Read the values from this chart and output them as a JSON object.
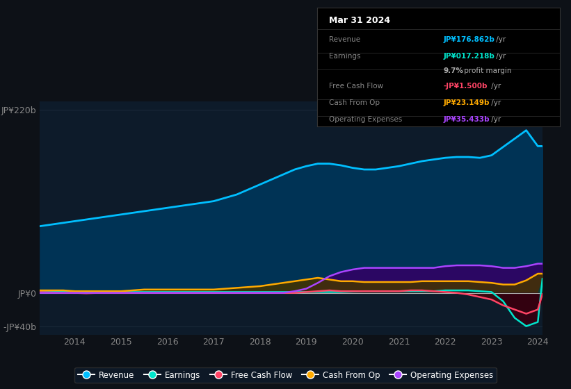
{
  "background_color": "#0d1117",
  "plot_bg_color": "#0d1b2a",
  "x_years": [
    2013.25,
    2013.5,
    2013.75,
    2014.0,
    2014.25,
    2014.5,
    2014.75,
    2015.0,
    2015.25,
    2015.5,
    2015.75,
    2016.0,
    2016.25,
    2016.5,
    2016.75,
    2017.0,
    2017.25,
    2017.5,
    2017.75,
    2018.0,
    2018.25,
    2018.5,
    2018.75,
    2019.0,
    2019.25,
    2019.5,
    2019.75,
    2020.0,
    2020.25,
    2020.5,
    2020.75,
    2021.0,
    2021.25,
    2021.5,
    2021.75,
    2022.0,
    2022.25,
    2022.5,
    2022.75,
    2023.0,
    2023.25,
    2023.5,
    2023.75,
    2024.0,
    2024.1
  ],
  "revenue": [
    80,
    82,
    84,
    86,
    88,
    90,
    92,
    94,
    96,
    98,
    100,
    102,
    104,
    106,
    108,
    110,
    114,
    118,
    124,
    130,
    136,
    142,
    148,
    152,
    155,
    155,
    153,
    150,
    148,
    148,
    150,
    152,
    155,
    158,
    160,
    162,
    163,
    163,
    162,
    165,
    175,
    185,
    195,
    176,
    176
  ],
  "earnings": [
    2,
    2,
    2,
    2,
    1.5,
    1,
    1,
    1,
    1,
    1,
    1,
    1,
    1,
    1,
    1,
    1,
    1,
    1,
    1,
    1,
    1,
    1,
    1,
    1,
    1,
    1,
    1,
    1.5,
    2,
    2,
    2,
    2,
    2,
    2,
    2,
    3,
    3,
    3,
    2,
    1,
    -10,
    -30,
    -40,
    -35,
    17
  ],
  "free_cash_flow": [
    1,
    0.5,
    0,
    0,
    -0.5,
    0,
    0,
    0,
    0,
    0,
    0,
    0,
    0,
    0,
    0,
    0,
    0,
    0,
    0,
    0,
    0,
    0,
    0,
    1,
    2,
    3,
    2,
    2,
    2,
    2,
    2,
    2,
    3,
    3,
    2,
    1,
    0,
    -2,
    -5,
    -8,
    -15,
    -20,
    -25,
    -20,
    -1.5
  ],
  "cash_from_op": [
    3,
    3,
    3,
    2,
    2,
    2,
    2,
    2,
    3,
    4,
    4,
    4,
    4,
    4,
    4,
    4,
    5,
    6,
    7,
    8,
    10,
    12,
    14,
    16,
    18,
    16,
    14,
    14,
    13,
    13,
    13,
    13,
    13,
    14,
    14,
    14,
    14,
    14,
    13,
    12,
    10,
    10,
    15,
    23,
    23
  ],
  "operating_expenses": [
    0,
    0,
    0,
    0,
    0,
    0,
    0,
    0,
    0,
    0,
    0,
    0,
    0,
    0,
    0,
    0,
    0,
    0,
    0,
    0,
    0,
    0,
    2,
    5,
    12,
    20,
    25,
    28,
    30,
    30,
    30,
    30,
    30,
    30,
    30,
    32,
    33,
    33,
    33,
    32,
    30,
    30,
    32,
    35,
    35
  ],
  "ylim": [
    -50,
    230
  ],
  "yticks_labels": [
    "JP¥220b",
    "JP¥0",
    "-JP¥40b"
  ],
  "yticks_values": [
    220,
    0,
    -40
  ],
  "xticks": [
    2014,
    2015,
    2016,
    2017,
    2018,
    2019,
    2020,
    2021,
    2022,
    2023,
    2024
  ],
  "legend": [
    {
      "label": "Revenue",
      "color": "#00bfff"
    },
    {
      "label": "Earnings",
      "color": "#00e5cc"
    },
    {
      "label": "Free Cash Flow",
      "color": "#ff4466"
    },
    {
      "label": "Cash From Op",
      "color": "#ffaa00"
    },
    {
      "label": "Operating Expenses",
      "color": "#aa44ff"
    }
  ],
  "revenue_color": "#00bfff",
  "earnings_color": "#00e5cc",
  "fcf_color": "#ff4466",
  "cashop_color": "#ffaa00",
  "opex_color": "#aa44ff",
  "revenue_fill_color": "#003355",
  "earnings_fill_pos_color": "#004444",
  "earnings_fill_neg_color": "#330011",
  "opex_fill_color": "#330066",
  "box_bg_color": "#000000",
  "box_border_color": "#333333",
  "box_title": "Mar 31 2024",
  "box_rows": [
    {
      "label": "Revenue",
      "val": "JP¥176.862b",
      "suffix": " /yr",
      "val_color": "#00bfff"
    },
    {
      "label": "Earnings",
      "val": "JP¥017.218b",
      "suffix": " /yr",
      "val_color": "#00e5cc"
    },
    {
      "label": "",
      "val": "9.7%",
      "suffix": " profit margin",
      "val_color": "#aaaaaa"
    },
    {
      "label": "Free Cash Flow",
      "val": "-JP¥1.500b",
      "suffix": " /yr",
      "val_color": "#ff4466"
    },
    {
      "label": "Cash From Op",
      "val": "JP¥23.149b",
      "suffix": " /yr",
      "val_color": "#ffaa00"
    },
    {
      "label": "Operating Expenses",
      "val": "JP¥35.433b",
      "suffix": " /yr",
      "val_color": "#aa44ff"
    }
  ]
}
